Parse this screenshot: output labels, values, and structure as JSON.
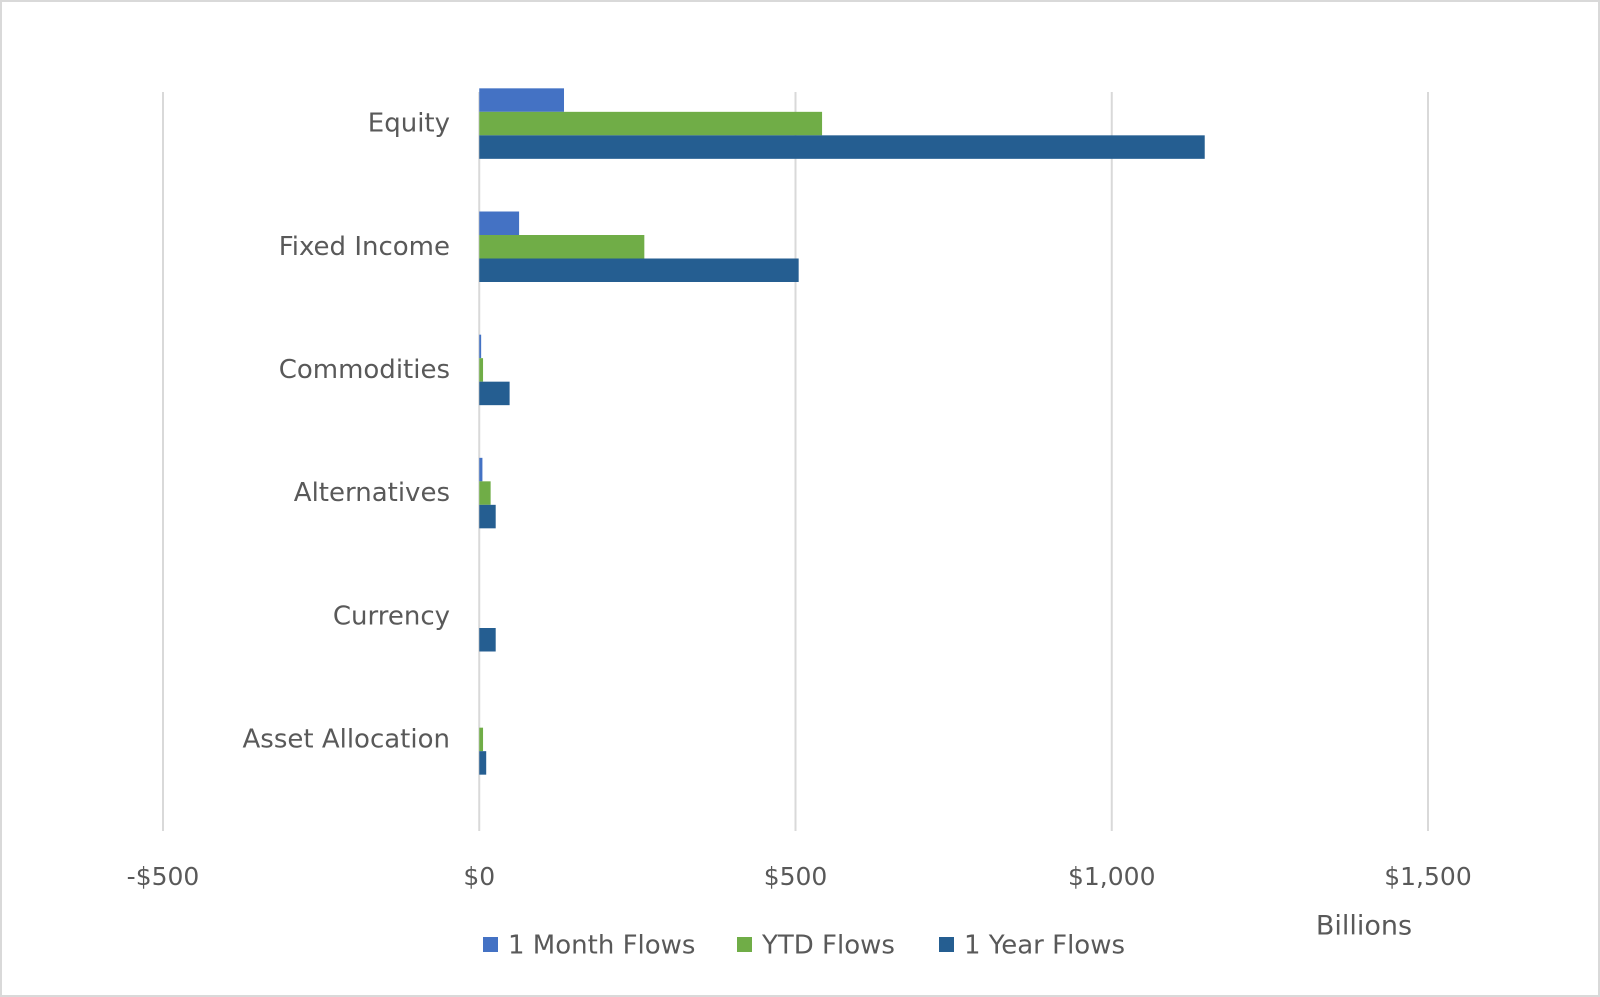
{
  "chart_data": {
    "type": "hbar",
    "categories": [
      "Equity",
      "Fixed Income",
      "Commodities",
      "Alternatives",
      "Currency",
      "Asset Allocation"
    ],
    "series": [
      {
        "name": "1 Month Flows",
        "color": "#4472c4",
        "values": [
          134,
          63,
          3,
          5,
          0,
          0
        ]
      },
      {
        "name": "YTD Flows",
        "color": "#70ad47",
        "values": [
          542,
          261,
          6,
          18,
          0,
          6
        ]
      },
      {
        "name": "1 Year Flows",
        "color": "#255e91",
        "values": [
          1147,
          505,
          48,
          26,
          26,
          11
        ]
      }
    ],
    "xlim": [
      -500,
      1500
    ],
    "xticks": [
      {
        "value": -500,
        "label": "-$500"
      },
      {
        "value": 0,
        "label": "$0"
      },
      {
        "value": 500,
        "label": "$500"
      },
      {
        "value": 1000,
        "label": "$1,000"
      },
      {
        "value": 1500,
        "label": "$1,500"
      }
    ],
    "xlabel": "Billions",
    "grid": true,
    "legend": "bottom"
  }
}
